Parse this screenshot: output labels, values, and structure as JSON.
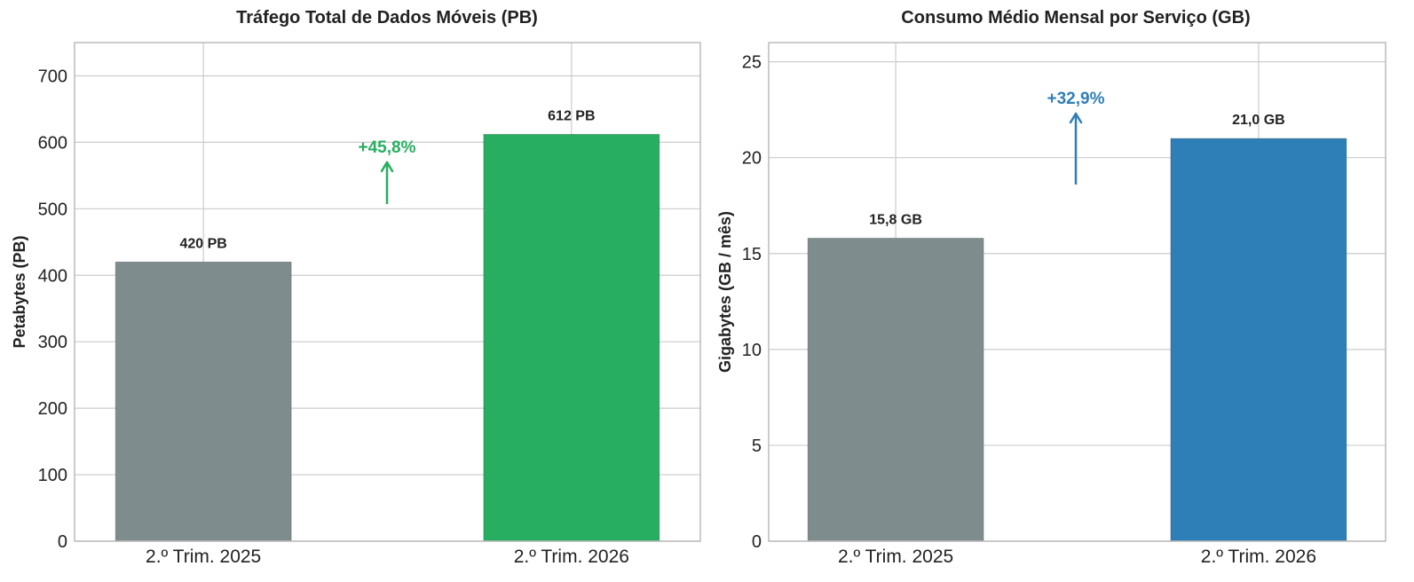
{
  "chart_data": [
    {
      "type": "bar",
      "title": "Tráfego Total de Dados Móveis (PB)",
      "ylabel": "Petabytes (PB)",
      "categories": [
        "2.º Trim. 2025",
        "2.º Trim. 2026"
      ],
      "values": [
        420,
        612
      ],
      "value_labels": [
        "420 PB",
        "612 PB"
      ],
      "colors": [
        "#7f8c8d",
        "#27ae60"
      ],
      "ylim": [
        0,
        750
      ],
      "yticks": [
        0,
        100,
        200,
        300,
        400,
        500,
        600,
        700
      ],
      "ytick_labels": [
        "0",
        "100",
        "200",
        "300",
        "400",
        "500",
        "600",
        "700"
      ],
      "grid": true,
      "annotation": {
        "text": "+45,8%",
        "color": "#27ae60",
        "arrow_from": 507,
        "arrow_to": 570
      }
    },
    {
      "type": "bar",
      "title": "Consumo Médio Mensal por Serviço (GB)",
      "ylabel": "Gigabytes (GB / mês)",
      "categories": [
        "2.º Trim. 2025",
        "2.º Trim. 2026"
      ],
      "values": [
        15.8,
        21.0
      ],
      "value_labels": [
        "15,8 GB",
        "21,0 GB"
      ],
      "colors": [
        "#7f8c8d",
        "#2e7fb8"
      ],
      "ylim": [
        0,
        26
      ],
      "yticks": [
        0,
        5,
        10,
        15,
        20,
        25
      ],
      "ytick_labels": [
        "0",
        "5",
        "10",
        "15",
        "20",
        "25"
      ],
      "grid": true,
      "annotation": {
        "text": "+32,9%",
        "color": "#2e7fb8",
        "arrow_from": 18.6,
        "arrow_to": 22.3
      }
    }
  ]
}
